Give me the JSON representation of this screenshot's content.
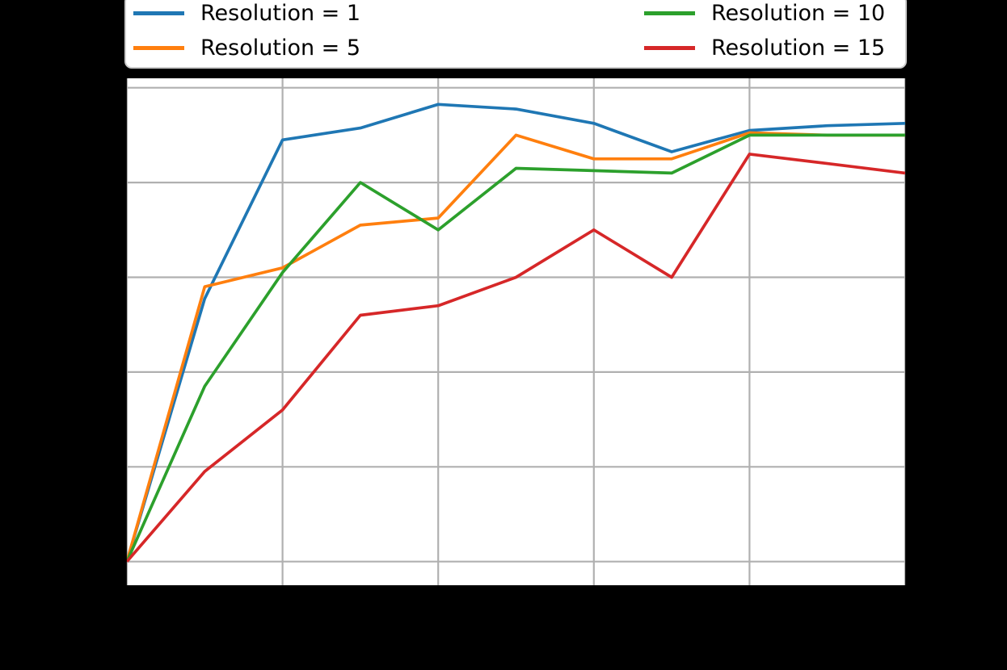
{
  "figure": {
    "background": "#000000",
    "plot_background": "#ffffff",
    "spine_color": "#000000",
    "title": ""
  },
  "legend": {
    "position": "top",
    "columns": 2,
    "background": "#ffffff",
    "border_color": "#cccccc",
    "entries": [
      {
        "label": "Resolution = 1",
        "color": "#1f77b4"
      },
      {
        "label": "Resolution = 5",
        "color": "#ff7f0e"
      },
      {
        "label": "Resolution = 10",
        "color": "#2ca02c"
      },
      {
        "label": "Resolution = 15",
        "color": "#d62728"
      }
    ]
  },
  "chart_data": {
    "type": "line",
    "title": "",
    "xlabel": "",
    "ylabel": "",
    "tick_labels_visible": false,
    "grid": true,
    "grid_color": "#b0b0b0",
    "legend_position": "top, 2 columns",
    "xlim": [
      0,
      10
    ],
    "ylim": [
      -0.05,
      1.02
    ],
    "x_gridlines": [
      0,
      2,
      4,
      6,
      8,
      10
    ],
    "y_gridlines": [
      0.0,
      0.2,
      0.4,
      0.6,
      0.8,
      1.0
    ],
    "x": [
      0,
      1,
      2,
      3,
      4,
      5,
      6,
      7,
      8,
      9,
      10
    ],
    "series": [
      {
        "name": "Resolution = 1",
        "color": "#1f77b4",
        "values": [
          0.0,
          0.555,
          0.89,
          0.915,
          0.965,
          0.955,
          0.925,
          0.865,
          0.91,
          0.92,
          0.925
        ]
      },
      {
        "name": "Resolution = 5",
        "color": "#ff7f0e",
        "values": [
          0.0,
          0.58,
          0.62,
          0.71,
          0.725,
          0.9,
          0.85,
          0.85,
          0.905,
          0.9,
          0.9
        ]
      },
      {
        "name": "Resolution = 10",
        "color": "#2ca02c",
        "values": [
          0.0,
          0.37,
          0.61,
          0.8,
          0.7,
          0.83,
          0.825,
          0.82,
          0.9,
          0.9,
          0.9
        ]
      },
      {
        "name": "Resolution = 15",
        "color": "#d62728",
        "values": [
          0.0,
          0.19,
          0.32,
          0.52,
          0.54,
          0.6,
          0.7,
          0.6,
          0.86,
          0.84,
          0.82
        ]
      }
    ]
  }
}
